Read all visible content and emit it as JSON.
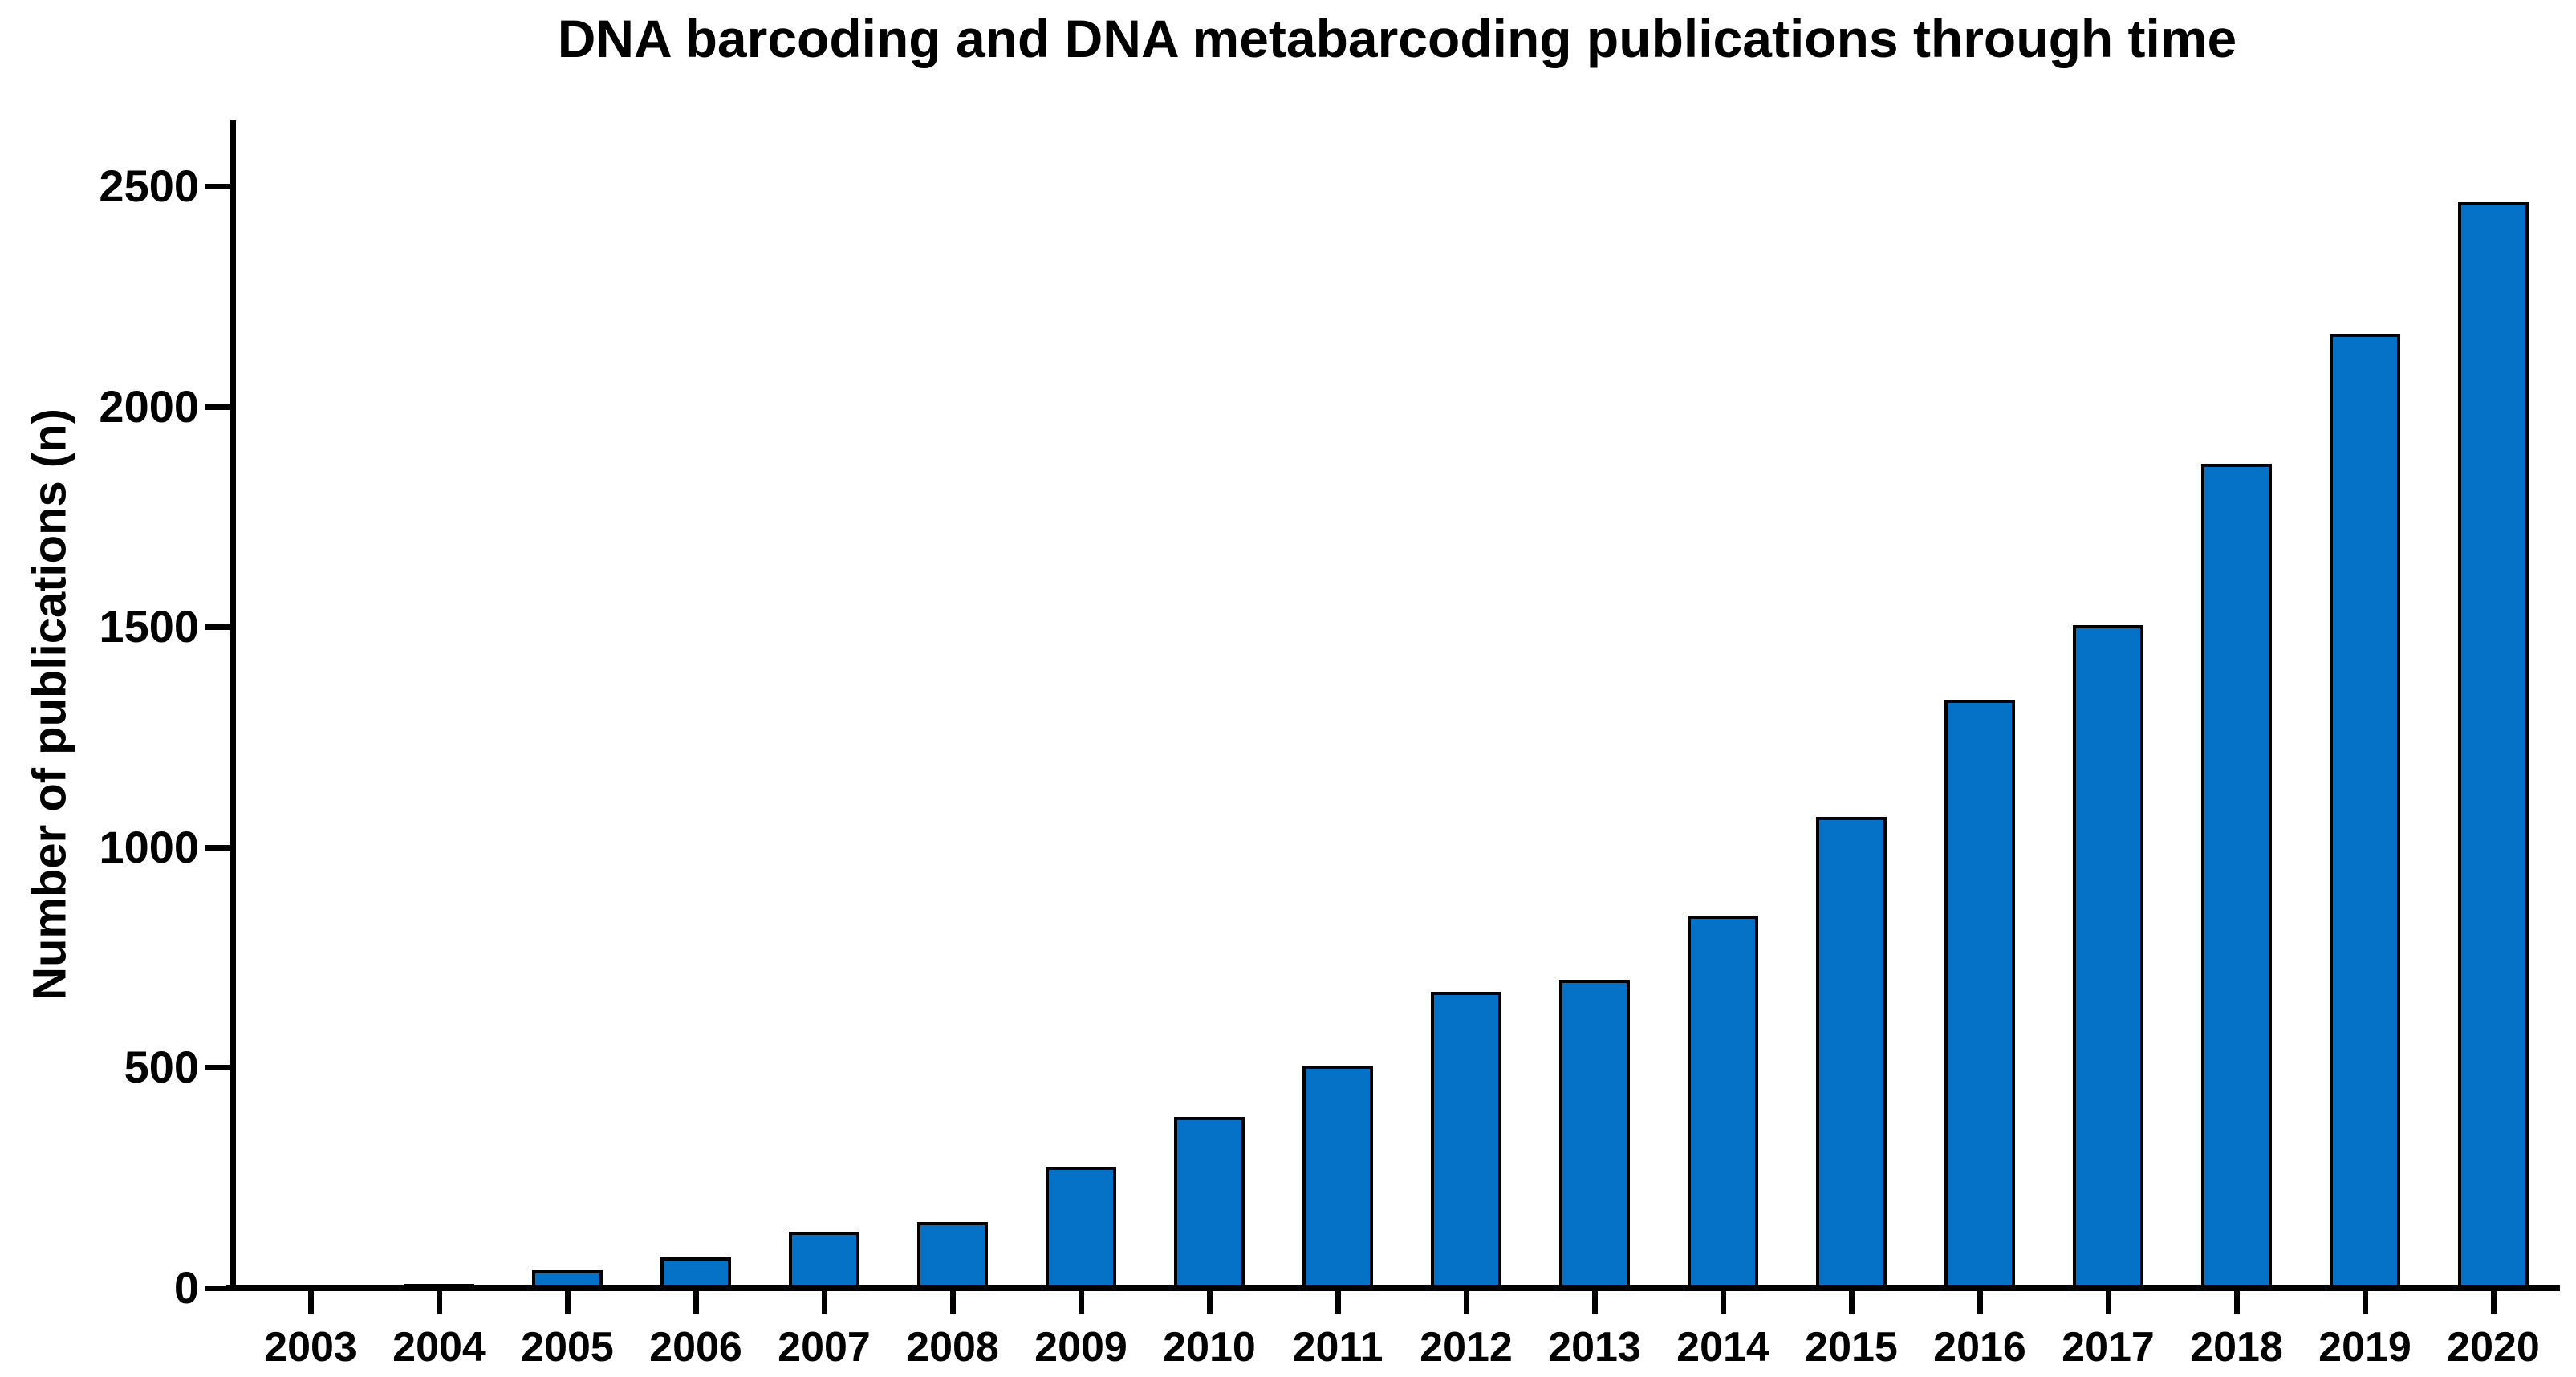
{
  "figure": {
    "title": "DNA barcoding and DNA metabarcoding publications through time",
    "ylabel": "Number of publications (n)"
  },
  "colors": {
    "bar_fill": "#0572C7",
    "bar_border": "#000000",
    "axis": "#000000",
    "text": "#000000",
    "background": "#FFFFFF"
  },
  "chart_data": {
    "type": "bar",
    "title": "DNA barcoding and DNA metabarcoding publications through time",
    "xlabel": "",
    "ylabel": "Number of publications (n)",
    "categories": [
      "2003",
      "2004",
      "2005",
      "2006",
      "2007",
      "2008",
      "2009",
      "2010",
      "2011",
      "2012",
      "2013",
      "2014",
      "2015",
      "2016",
      "2017",
      "2018",
      "2019",
      "2020"
    ],
    "values": [
      8,
      10,
      40,
      70,
      128,
      150,
      275,
      388,
      505,
      672,
      700,
      845,
      1070,
      1335,
      1505,
      1870,
      2165,
      2465
    ],
    "yticks": [
      0,
      500,
      1000,
      1500,
      2000,
      2500
    ],
    "ylim": [
      0,
      2650
    ],
    "grid": false,
    "legend": null,
    "bar_style": "solid fill with black outline, bars sit on x-axis line"
  }
}
